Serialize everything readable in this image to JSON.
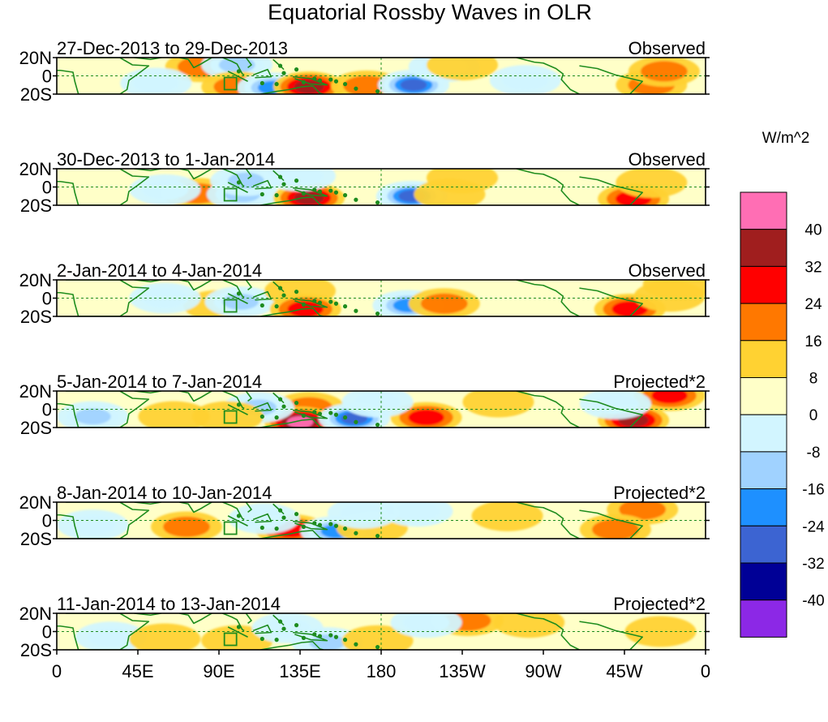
{
  "chart_data": {
    "type": "heatmap",
    "title": "Equatorial Rossby Waves in OLR",
    "units_label": "W/m^2",
    "x_ticks": [
      "0",
      "45E",
      "90E",
      "135E",
      "180",
      "135W",
      "90W",
      "45W",
      "0"
    ],
    "x_tick_lon": [
      0,
      45,
      90,
      135,
      180,
      225,
      270,
      315,
      360
    ],
    "y_ticks": [
      "20N",
      "0",
      "20S"
    ],
    "y_tick_lat": [
      20,
      0,
      -20
    ],
    "lon_range": [
      0,
      360
    ],
    "lat_range": [
      -20,
      20
    ],
    "colorbar": {
      "levels": [
        "40",
        "32",
        "24",
        "16",
        "8",
        "0",
        "-8",
        "-16",
        "-24",
        "-32",
        "-40"
      ],
      "colors": [
        "#ff6eb4",
        "#a01e1e",
        "#ff0000",
        "#ff7800",
        "#ffd232",
        "#ffffc8",
        "#d2f5ff",
        "#a0d2ff",
        "#1e90ff",
        "#3c64d2",
        "#000096",
        "#8c28e6"
      ]
    },
    "panels": [
      {
        "date_label": "27-Dec-2013 to 29-Dec-2013",
        "type_label": "Observed",
        "anomalies": [
          {
            "lon": 80,
            "lat": 10,
            "value": 18
          },
          {
            "lon": 100,
            "lat": 12,
            "value": -22
          },
          {
            "lon": 100,
            "lat": -12,
            "value": 22
          },
          {
            "lon": 120,
            "lat": -13,
            "value": -30
          },
          {
            "lon": 140,
            "lat": -12,
            "value": 32
          },
          {
            "lon": 172,
            "lat": -11,
            "value": 20
          },
          {
            "lon": 198,
            "lat": -10,
            "value": -38
          },
          {
            "lon": 215,
            "lat": 10,
            "value": -14
          },
          {
            "lon": 225,
            "lat": 12,
            "value": 14
          },
          {
            "lon": 330,
            "lat": -10,
            "value": 20
          },
          {
            "lon": 337,
            "lat": 5,
            "value": 18
          },
          {
            "lon": 55,
            "lat": -8,
            "value": -12
          },
          {
            "lon": 260,
            "lat": -5,
            "value": -8
          }
        ]
      },
      {
        "date_label": "30-Dec-2013 to 1-Jan-2014",
        "type_label": "Observed",
        "anomalies": [
          {
            "lon": 78,
            "lat": -7,
            "value": 18
          },
          {
            "lon": 103,
            "lat": -8,
            "value": -22
          },
          {
            "lon": 105,
            "lat": 7,
            "value": -16
          },
          {
            "lon": 140,
            "lat": -12,
            "value": 33
          },
          {
            "lon": 197,
            "lat": -10,
            "value": -35
          },
          {
            "lon": 218,
            "lat": -8,
            "value": 14
          },
          {
            "lon": 225,
            "lat": 10,
            "value": 12
          },
          {
            "lon": 320,
            "lat": -13,
            "value": 24
          },
          {
            "lon": 330,
            "lat": 5,
            "value": 10
          },
          {
            "lon": 60,
            "lat": -3,
            "value": -10
          },
          {
            "lon": 135,
            "lat": 12,
            "value": -12
          }
        ]
      },
      {
        "date_label": "2-Jan-2014 to 4-Jan-2014",
        "type_label": "Observed",
        "anomalies": [
          {
            "lon": 90,
            "lat": -8,
            "value": 14
          },
          {
            "lon": 102,
            "lat": -4,
            "value": -16
          },
          {
            "lon": 135,
            "lat": 8,
            "value": 8
          },
          {
            "lon": 138,
            "lat": -12,
            "value": 28
          },
          {
            "lon": 195,
            "lat": -8,
            "value": -24
          },
          {
            "lon": 215,
            "lat": -6,
            "value": 16
          },
          {
            "lon": 318,
            "lat": -12,
            "value": 26
          },
          {
            "lon": 345,
            "lat": 15,
            "value": 12
          },
          {
            "lon": 340,
            "lat": 2,
            "value": 9
          },
          {
            "lon": 60,
            "lat": 0,
            "value": -9
          }
        ]
      },
      {
        "date_label": "5-Jan-2014 to 7-Jan-2014",
        "type_label": "Projected*2",
        "anomalies": [
          {
            "lon": 140,
            "lat": 2,
            "value": 22
          },
          {
            "lon": 135,
            "lat": -14,
            "value": 42
          },
          {
            "lon": 112,
            "lat": 2,
            "value": -16
          },
          {
            "lon": 165,
            "lat": -10,
            "value": -36
          },
          {
            "lon": 205,
            "lat": -9,
            "value": 24
          },
          {
            "lon": 178,
            "lat": 8,
            "value": -12
          },
          {
            "lon": 320,
            "lat": -12,
            "value": 34
          },
          {
            "lon": 340,
            "lat": 15,
            "value": 26
          },
          {
            "lon": 310,
            "lat": 6,
            "value": -10
          },
          {
            "lon": 20,
            "lat": -8,
            "value": -18
          },
          {
            "lon": 65,
            "lat": -8,
            "value": 12
          },
          {
            "lon": 95,
            "lat": -8,
            "value": 14
          },
          {
            "lon": 245,
            "lat": 8,
            "value": 10
          }
        ]
      },
      {
        "date_label": "8-Jan-2014 to 10-Jan-2014",
        "type_label": "Projected*2",
        "anomalies": [
          {
            "lon": 130,
            "lat": -10,
            "value": 30
          },
          {
            "lon": 72,
            "lat": -7,
            "value": 18
          },
          {
            "lon": 115,
            "lat": 2,
            "value": -14
          },
          {
            "lon": 155,
            "lat": -12,
            "value": -30
          },
          {
            "lon": 175,
            "lat": -8,
            "value": 10
          },
          {
            "lon": 170,
            "lat": 8,
            "value": -10
          },
          {
            "lon": 200,
            "lat": 10,
            "value": -12
          },
          {
            "lon": 325,
            "lat": 12,
            "value": 20
          },
          {
            "lon": 310,
            "lat": -10,
            "value": 18
          },
          {
            "lon": 20,
            "lat": -5,
            "value": -12
          },
          {
            "lon": 250,
            "lat": 5,
            "value": 8
          }
        ]
      },
      {
        "date_label": "11-Jan-2014 to 13-Jan-2014",
        "type_label": "Projected*2",
        "anomalies": [
          {
            "lon": 100,
            "lat": -10,
            "value": 14
          },
          {
            "lon": 150,
            "lat": -12,
            "value": -22
          },
          {
            "lon": 128,
            "lat": 4,
            "value": -10
          },
          {
            "lon": 178,
            "lat": -10,
            "value": 8
          },
          {
            "lon": 228,
            "lat": 12,
            "value": 18
          },
          {
            "lon": 262,
            "lat": 10,
            "value": 14
          },
          {
            "lon": 205,
            "lat": 10,
            "value": -10
          },
          {
            "lon": 335,
            "lat": 0,
            "value": 8
          },
          {
            "lon": 30,
            "lat": -6,
            "value": -9
          },
          {
            "lon": 60,
            "lat": -8,
            "value": 10
          }
        ]
      }
    ]
  }
}
